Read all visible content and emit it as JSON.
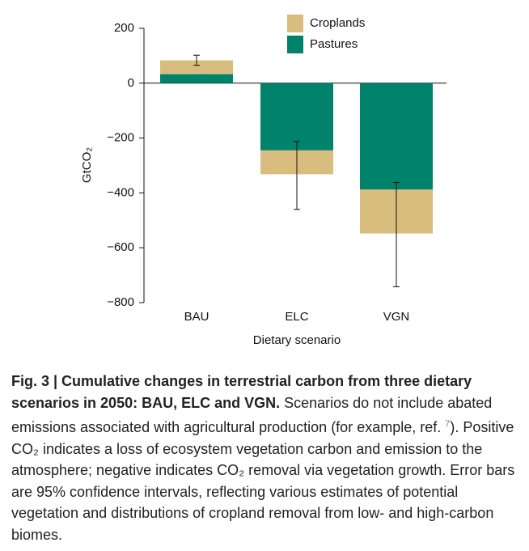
{
  "chart_data": {
    "type": "stacked_bar",
    "categories": [
      "BAU",
      "ELC",
      "VGN"
    ],
    "series": [
      {
        "name": "Pastures",
        "color": "#00826b",
        "values": [
          33,
          -245,
          -388
        ]
      },
      {
        "name": "Croplands",
        "color": "#d9bd7f",
        "values": [
          50,
          -87,
          -160
        ]
      }
    ],
    "error_low": [
      65,
      -460,
      -742
    ],
    "error_high": [
      102,
      -212,
      -362
    ],
    "ylim": [
      -800,
      200
    ],
    "yticks": [
      {
        "value": -800,
        "label": "−800"
      },
      {
        "value": -600,
        "label": "−600"
      },
      {
        "value": -400,
        "label": "−400"
      },
      {
        "value": -200,
        "label": "−200"
      },
      0,
      200
    ],
    "ylabel": "GtCO₂",
    "xlabel": "Dietary scenario",
    "legend": "top-right"
  },
  "caption": {
    "title": "Fig. 3 | Cumulative changes in terrestrial carbon from three dietary scenarios in 2050: BAU, ELC and VGN.",
    "text_before_ref": "Scenarios do not include abated emissions associated with agricultural production (for example, ref. ",
    "ref": "7",
    "text_after_ref": "). Positive CO₂ indicates a loss of ecosystem vegetation carbon and emission to the atmosphere; negative indicates CO₂ removal via vegetation growth. Error bars are 95% confidence intervals, reflecting various estimates of potential vegetation and distributions of cropland removal from low- and high-carbon biomes."
  }
}
